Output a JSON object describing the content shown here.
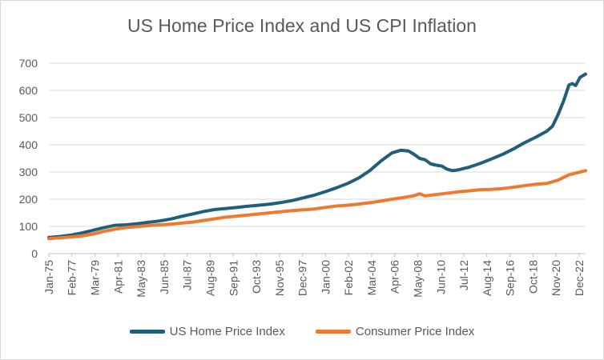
{
  "chart_data": {
    "type": "line",
    "title": "US Home Price Index and US CPI Inflation",
    "xlabel": "",
    "ylabel": "",
    "ylim": [
      0,
      700
    ],
    "yticks": [
      0,
      100,
      200,
      300,
      400,
      500,
      600,
      700
    ],
    "x_range": [
      1975.0,
      2023.5
    ],
    "x_tick_labels": [
      "Jan-75",
      "Feb-77",
      "Mar-79",
      "Apr-81",
      "May-83",
      "Jun-85",
      "Jul-87",
      "Aug-89",
      "Sep-91",
      "Oct-93",
      "Nov-95",
      "Dec-97",
      "Jan-00",
      "Feb-02",
      "Mar-04",
      "Apr-06",
      "May-08",
      "Jun-10",
      "Jul-12",
      "Aug-14",
      "Sep-16",
      "Oct-18",
      "Nov-20",
      "Dec-22"
    ],
    "x_tick_positions": [
      1975.0,
      1977.08,
      1979.17,
      1981.25,
      1983.33,
      1985.42,
      1987.5,
      1989.58,
      1991.67,
      1993.75,
      1995.83,
      1997.92,
      2000.0,
      2002.08,
      2004.17,
      2006.25,
      2008.33,
      2010.42,
      2012.5,
      2014.58,
      2016.67,
      2018.75,
      2020.83,
      2022.92
    ],
    "grid": "horizontal",
    "legend": "bottom",
    "series": [
      {
        "name": "US Home Price Index",
        "color": "#1f5f7a",
        "points": [
          [
            1975.0,
            59
          ],
          [
            1976.0,
            63
          ],
          [
            1977.0,
            68
          ],
          [
            1978.0,
            76
          ],
          [
            1979.0,
            86
          ],
          [
            1980.0,
            96
          ],
          [
            1981.0,
            104
          ],
          [
            1982.0,
            106
          ],
          [
            1983.0,
            110
          ],
          [
            1984.0,
            115
          ],
          [
            1985.0,
            120
          ],
          [
            1986.0,
            127
          ],
          [
            1987.0,
            137
          ],
          [
            1988.0,
            146
          ],
          [
            1989.0,
            155
          ],
          [
            1990.0,
            162
          ],
          [
            1991.0,
            166
          ],
          [
            1992.0,
            170
          ],
          [
            1993.0,
            174
          ],
          [
            1994.0,
            178
          ],
          [
            1995.0,
            182
          ],
          [
            1996.0,
            188
          ],
          [
            1997.0,
            195
          ],
          [
            1998.0,
            205
          ],
          [
            1999.0,
            215
          ],
          [
            2000.0,
            228
          ],
          [
            2001.0,
            242
          ],
          [
            2002.0,
            258
          ],
          [
            2003.0,
            278
          ],
          [
            2004.0,
            305
          ],
          [
            2005.0,
            340
          ],
          [
            2006.0,
            370
          ],
          [
            2006.8,
            380
          ],
          [
            2007.5,
            377
          ],
          [
            2008.0,
            365
          ],
          [
            2008.5,
            350
          ],
          [
            2009.0,
            345
          ],
          [
            2009.5,
            330
          ],
          [
            2010.0,
            325
          ],
          [
            2010.5,
            322
          ],
          [
            2011.0,
            310
          ],
          [
            2011.5,
            305
          ],
          [
            2012.0,
            308
          ],
          [
            2013.0,
            318
          ],
          [
            2014.0,
            332
          ],
          [
            2015.0,
            348
          ],
          [
            2016.0,
            365
          ],
          [
            2017.0,
            385
          ],
          [
            2018.0,
            408
          ],
          [
            2019.0,
            428
          ],
          [
            2020.0,
            450
          ],
          [
            2020.5,
            468
          ],
          [
            2021.0,
            510
          ],
          [
            2021.5,
            560
          ],
          [
            2022.0,
            620
          ],
          [
            2022.3,
            625
          ],
          [
            2022.6,
            618
          ],
          [
            2023.0,
            648
          ],
          [
            2023.5,
            660
          ]
        ]
      },
      {
        "name": "Consumer Price Index",
        "color": "#ee7a30",
        "points": [
          [
            1975.0,
            55
          ],
          [
            1976.0,
            58
          ],
          [
            1977.0,
            61
          ],
          [
            1978.0,
            65
          ],
          [
            1979.0,
            72
          ],
          [
            1980.0,
            82
          ],
          [
            1981.0,
            90
          ],
          [
            1982.0,
            96
          ],
          [
            1983.0,
            99
          ],
          [
            1984.0,
            103
          ],
          [
            1985.0,
            106
          ],
          [
            1986.0,
            108
          ],
          [
            1987.0,
            112
          ],
          [
            1988.0,
            116
          ],
          [
            1989.0,
            122
          ],
          [
            1990.0,
            128
          ],
          [
            1991.0,
            134
          ],
          [
            1992.0,
            138
          ],
          [
            1993.0,
            142
          ],
          [
            1994.0,
            146
          ],
          [
            1995.0,
            150
          ],
          [
            1996.0,
            154
          ],
          [
            1997.0,
            158
          ],
          [
            1998.0,
            161
          ],
          [
            1999.0,
            164
          ],
          [
            2000.0,
            170
          ],
          [
            2001.0,
            175
          ],
          [
            2002.0,
            178
          ],
          [
            2003.0,
            182
          ],
          [
            2004.0,
            187
          ],
          [
            2005.0,
            193
          ],
          [
            2006.0,
            200
          ],
          [
            2007.0,
            206
          ],
          [
            2008.0,
            213
          ],
          [
            2008.5,
            220
          ],
          [
            2009.0,
            212
          ],
          [
            2010.0,
            217
          ],
          [
            2011.0,
            222
          ],
          [
            2012.0,
            227
          ],
          [
            2013.0,
            231
          ],
          [
            2014.0,
            235
          ],
          [
            2015.0,
            236
          ],
          [
            2016.0,
            239
          ],
          [
            2017.0,
            244
          ],
          [
            2018.0,
            250
          ],
          [
            2019.0,
            255
          ],
          [
            2020.0,
            258
          ],
          [
            2021.0,
            270
          ],
          [
            2022.0,
            290
          ],
          [
            2023.0,
            300
          ],
          [
            2023.5,
            305
          ]
        ]
      }
    ]
  }
}
